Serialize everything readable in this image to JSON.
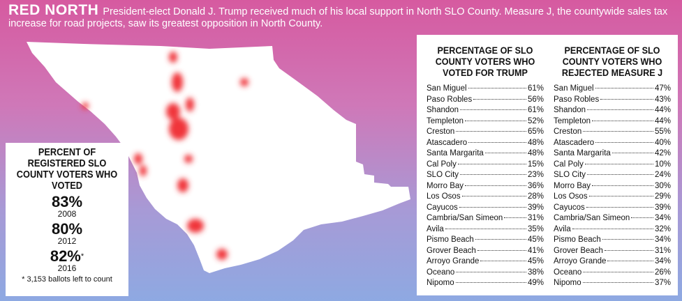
{
  "header": {
    "kicker": "RED NORTH",
    "text": "President-elect Donald J. Trump received much of his local support in North SLO County. Measure J, the countywide sales tax increase for road projects, saw its greatest opposition in North County."
  },
  "colors": {
    "hotspot": "#f0363a",
    "map_fill": "#ffffff",
    "bg_top": "#d65aa0",
    "bg_bottom": "#8ea9e2"
  },
  "turnout": {
    "title": "PERCENT OF REGISTERED SLO COUNTY VOTERS WHO VOTED",
    "items": [
      {
        "pct": "83%",
        "year": "2008",
        "mark": ""
      },
      {
        "pct": "80%",
        "year": "2012",
        "mark": ""
      },
      {
        "pct": "82%",
        "year": "2016",
        "mark": "*"
      }
    ],
    "note": "* 3,153 ballots left to count"
  },
  "chart_data": {
    "type": "table",
    "columns": [
      {
        "title": "PERCENTAGE OF SLO COUNTY VOTERS WHO VOTED FOR TRUMP",
        "rows": [
          {
            "name": "San Miguel",
            "value": "61%"
          },
          {
            "name": "Paso Robles",
            "value": "56%"
          },
          {
            "name": "Shandon",
            "value": "61%"
          },
          {
            "name": "Templeton",
            "value": "52%"
          },
          {
            "name": "Creston",
            "value": "65%"
          },
          {
            "name": "Atascadero",
            "value": "48%"
          },
          {
            "name": "Santa Margarita",
            "value": "48%"
          },
          {
            "name": "Cal Poly",
            "value": "15%"
          },
          {
            "name": "SLO City",
            "value": "23%"
          },
          {
            "name": "Morro Bay",
            "value": "36%"
          },
          {
            "name": "Los Osos",
            "value": "28%"
          },
          {
            "name": "Cayucos",
            "value": "39%"
          },
          {
            "name": "Cambria/San Simeon",
            "value": "31%"
          },
          {
            "name": "Avila",
            "value": "35%"
          },
          {
            "name": "Pismo Beach",
            "value": "45%"
          },
          {
            "name": "Grover Beach",
            "value": "41%"
          },
          {
            "name": "Arroyo Grande",
            "value": "45%"
          },
          {
            "name": "Oceano",
            "value": "38%"
          },
          {
            "name": "Nipomo",
            "value": "49%"
          }
        ]
      },
      {
        "title": "PERCENTAGE OF SLO COUNTY VOTERS WHO REJECTED MEASURE J",
        "rows": [
          {
            "name": "San Miguel",
            "value": "47%"
          },
          {
            "name": "Paso Robles",
            "value": "43%"
          },
          {
            "name": "Shandon",
            "value": "44%"
          },
          {
            "name": "Templeton",
            "value": "44%"
          },
          {
            "name": "Creston",
            "value": "55%"
          },
          {
            "name": "Atascadero",
            "value": "40%"
          },
          {
            "name": "Santa Margarita",
            "value": "42%"
          },
          {
            "name": "Cal Poly",
            "value": "10%"
          },
          {
            "name": "SLO City",
            "value": "24%"
          },
          {
            "name": "Morro Bay",
            "value": "30%"
          },
          {
            "name": "Los Osos",
            "value": "29%"
          },
          {
            "name": "Cayucos",
            "value": "39%"
          },
          {
            "name": "Cambria/San Simeon",
            "value": "34%"
          },
          {
            "name": "Avila",
            "value": "32%"
          },
          {
            "name": "Pismo Beach",
            "value": "34%"
          },
          {
            "name": "Grover Beach",
            "value": "31%"
          },
          {
            "name": "Arroyo Grande",
            "value": "34%"
          },
          {
            "name": "Oceano",
            "value": "26%"
          },
          {
            "name": "Nipomo",
            "value": "37%"
          }
        ]
      }
    ]
  }
}
